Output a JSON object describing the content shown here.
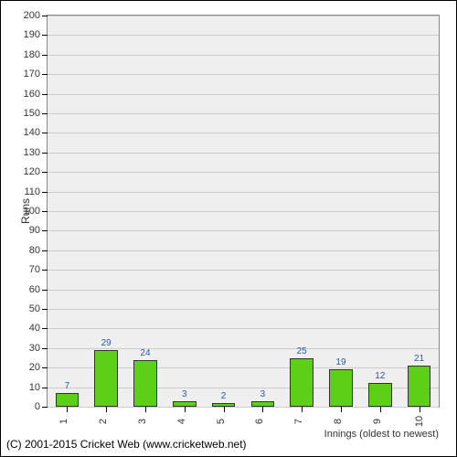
{
  "chart": {
    "type": "bar",
    "ylabel": "Runs",
    "xlabel": "Innings (oldest to newest)",
    "ylim": [
      0,
      200
    ],
    "ytick_step": 10,
    "background_color": "#efefef",
    "grid_color": "#cccccc",
    "bar_fill": "#5cd016",
    "bar_border": "#333333",
    "value_label_color": "#2b5aa0",
    "label_fontsize": 11,
    "categories": [
      "1",
      "2",
      "3",
      "4",
      "5",
      "6",
      "7",
      "8",
      "9",
      "10"
    ],
    "values": [
      7,
      29,
      24,
      3,
      2,
      3,
      25,
      19,
      12,
      21
    ],
    "bar_width": 0.6
  },
  "copyright": "(C) 2001-2015 Cricket Web (www.cricketweb.net)"
}
